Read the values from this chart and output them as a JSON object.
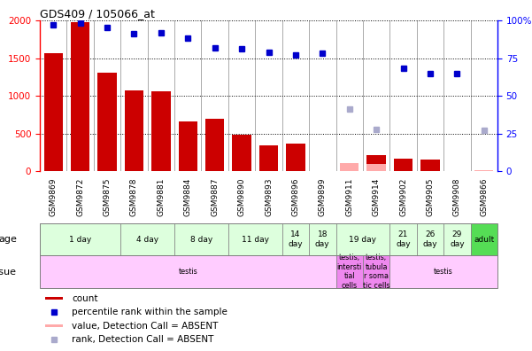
{
  "title": "GDS409 / 105066_at",
  "samples": [
    "GSM9869",
    "GSM9872",
    "GSM9875",
    "GSM9878",
    "GSM9881",
    "GSM9884",
    "GSM9887",
    "GSM9890",
    "GSM9893",
    "GSM9896",
    "GSM9899",
    "GSM9911",
    "GSM9914",
    "GSM9902",
    "GSM9905",
    "GSM9908",
    "GSM9866"
  ],
  "bar_values": [
    1570,
    1980,
    1310,
    1070,
    1060,
    660,
    700,
    490,
    340,
    370,
    null,
    null,
    220,
    170,
    160,
    null,
    null
  ],
  "bar_absent_values": [
    null,
    null,
    null,
    null,
    null,
    null,
    null,
    null,
    null,
    null,
    null,
    110,
    100,
    null,
    null,
    null,
    20
  ],
  "pct_values": [
    97,
    98,
    95,
    91,
    92,
    88,
    82,
    81,
    79,
    77,
    78,
    null,
    null,
    68,
    65,
    65,
    null
  ],
  "pct_absent_values": [
    null,
    null,
    null,
    null,
    null,
    null,
    null,
    null,
    null,
    null,
    null,
    41,
    28,
    null,
    null,
    null,
    27
  ],
  "bar_color": "#cc0000",
  "bar_absent_color": "#ffaaaa",
  "pct_color": "#0000cc",
  "pct_absent_color": "#aaaacc",
  "ylim_left": [
    0,
    2000
  ],
  "ylim_right": [
    0,
    100
  ],
  "yticks_left": [
    0,
    500,
    1000,
    1500,
    2000
  ],
  "yticks_right": [
    0,
    25,
    50,
    75,
    100
  ],
  "age_groups": [
    {
      "label": "1 day",
      "start": 0,
      "end": 3,
      "color": "#ddffdd"
    },
    {
      "label": "4 day",
      "start": 3,
      "end": 5,
      "color": "#ddffdd"
    },
    {
      "label": "8 day",
      "start": 5,
      "end": 7,
      "color": "#ddffdd"
    },
    {
      "label": "11 day",
      "start": 7,
      "end": 9,
      "color": "#ddffdd"
    },
    {
      "label": "14\nday",
      "start": 9,
      "end": 10,
      "color": "#ddffdd"
    },
    {
      "label": "18\nday",
      "start": 10,
      "end": 11,
      "color": "#ddffdd"
    },
    {
      "label": "19 day",
      "start": 11,
      "end": 13,
      "color": "#ddffdd"
    },
    {
      "label": "21\nday",
      "start": 13,
      "end": 14,
      "color": "#ddffdd"
    },
    {
      "label": "26\nday",
      "start": 14,
      "end": 15,
      "color": "#ddffdd"
    },
    {
      "label": "29\nday",
      "start": 15,
      "end": 16,
      "color": "#ddffdd"
    },
    {
      "label": "adult",
      "start": 16,
      "end": 17,
      "color": "#55dd55"
    }
  ],
  "tissue_groups": [
    {
      "label": "testis",
      "start": 0,
      "end": 11,
      "color": "#ffccff"
    },
    {
      "label": "testis,\nintersti\ntial\ncells",
      "start": 11,
      "end": 12,
      "color": "#ee88ee"
    },
    {
      "label": "testis,\ntubula\nr soma\ntic cells",
      "start": 12,
      "end": 13,
      "color": "#ee88ee"
    },
    {
      "label": "testis",
      "start": 13,
      "end": 17,
      "color": "#ffccff"
    }
  ],
  "background_color": "#ffffff",
  "ax_bg_color": "#ffffff"
}
